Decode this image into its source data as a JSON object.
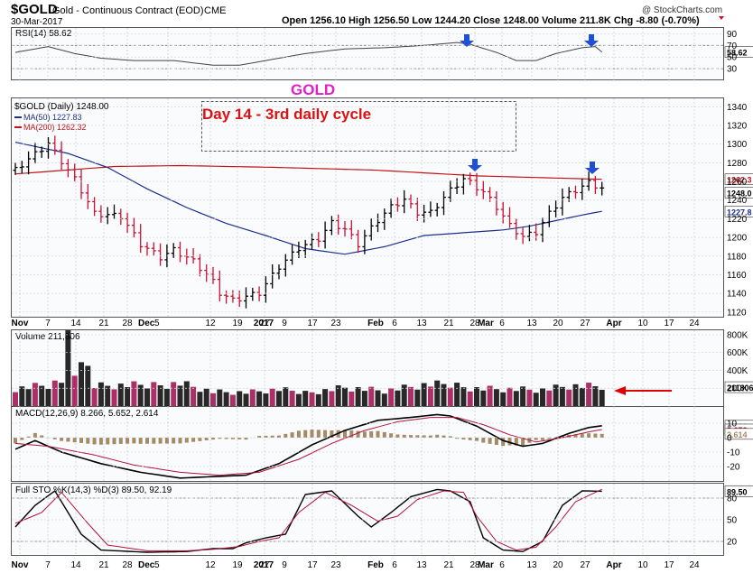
{
  "header": {
    "symbol": "$GOLD",
    "name": "Gold - Continuous Contract (EOD)",
    "exchange": "CME",
    "date": "30-Mar-2017",
    "ohlc_text": "Open 1256.10  High 1256.50  Low 1244.20  Close 1248.00  Volume 211.8K  Chg -8.80 (-0.70%)",
    "watermark": "@ StockCharts.com"
  },
  "annotations": {
    "title": "GOLD",
    "note": "Day 14 - 3rd daily cycle"
  },
  "colors": {
    "up": "#000000",
    "down": "#cc1133",
    "ma50": "#1c2f8a",
    "ma200": "#c0161a",
    "arrow": "#1f4fd6",
    "magenta": "#e020c8",
    "title_red": "#dd1111",
    "volume_up": "#111111",
    "volume_down": "#a31a55",
    "macd_line": "#000000",
    "signal_line": "#b5123a",
    "histogram": "#a48a66"
  },
  "x_axis": {
    "labels": [
      "Nov",
      "7",
      "14",
      "21",
      "28",
      "Dec",
      "5",
      "12",
      "19",
      "27",
      "2017",
      "9",
      "17",
      "23",
      "Feb",
      "6",
      "13",
      "21",
      "28",
      "Mar",
      "6",
      "13",
      "20",
      "27",
      "Apr",
      "10",
      "17",
      "24"
    ]
  },
  "chart_data": [
    {
      "type": "line",
      "title": "RSI(14) 58.62",
      "series": [
        {
          "name": "RSI(14)",
          "last": 58.62
        }
      ],
      "yticks": [
        30,
        50,
        70,
        90
      ],
      "ylim": [
        10,
        100
      ],
      "ref_lines": [
        30,
        70
      ]
    },
    {
      "type": "ohlc",
      "legend": [
        {
          "label": "$GOLD (Daily) 1248.00",
          "kind": "price"
        },
        {
          "label": "MA(50) 1227.83",
          "kind": "ma50"
        },
        {
          "label": "MA(200) 1262.32",
          "kind": "ma200"
        }
      ],
      "yticks": [
        1120,
        1140,
        1160,
        1180,
        1200,
        1220,
        1240,
        1260,
        1280,
        1300,
        1320,
        1340
      ],
      "ylim": [
        1115,
        1350
      ],
      "last_labels": {
        "ma200": "1262.3",
        "close": "1248.0",
        "ma50": "1227.8"
      },
      "close_path": [
        [
          0,
          1272
        ],
        [
          5,
          1300
        ],
        [
          9,
          1262
        ],
        [
          12,
          1225
        ],
        [
          16,
          1222
        ],
        [
          19,
          1192
        ],
        [
          22,
          1178
        ],
        [
          24,
          1186
        ],
        [
          27,
          1174
        ],
        [
          30,
          1152
        ],
        [
          31,
          1140
        ],
        [
          33,
          1132
        ],
        [
          35,
          1136
        ],
        [
          37,
          1140
        ],
        [
          40,
          1168
        ],
        [
          43,
          1188
        ],
        [
          46,
          1198
        ],
        [
          48,
          1215
        ],
        [
          50,
          1208
        ],
        [
          52,
          1192
        ],
        [
          55,
          1218
        ],
        [
          57,
          1232
        ],
        [
          59,
          1240
        ],
        [
          61,
          1226
        ],
        [
          63,
          1226
        ],
        [
          66,
          1250
        ],
        [
          68,
          1262
        ],
        [
          69,
          1258
        ],
        [
          71,
          1248
        ],
        [
          73,
          1232
        ],
        [
          75,
          1212
        ],
        [
          77,
          1200
        ],
        [
          79,
          1205
        ],
        [
          81,
          1225
        ],
        [
          83,
          1242
        ],
        [
          85,
          1250
        ],
        [
          87,
          1258
        ],
        [
          89,
          1252
        ]
      ],
      "ma50_path": [
        [
          0,
          1302
        ],
        [
          8,
          1290
        ],
        [
          14,
          1275
        ],
        [
          20,
          1252
        ],
        [
          26,
          1232
        ],
        [
          32,
          1215
        ],
        [
          38,
          1202
        ],
        [
          44,
          1188
        ],
        [
          50,
          1182
        ],
        [
          56,
          1190
        ],
        [
          62,
          1202
        ],
        [
          68,
          1205
        ],
        [
          74,
          1208
        ],
        [
          78,
          1212
        ],
        [
          82,
          1218
        ],
        [
          86,
          1224
        ],
        [
          89,
          1228
        ]
      ],
      "ma200_path": [
        [
          0,
          1268
        ],
        [
          15,
          1276
        ],
        [
          25,
          1277
        ],
        [
          40,
          1275
        ],
        [
          55,
          1272
        ],
        [
          70,
          1266
        ],
        [
          89,
          1262.3
        ]
      ]
    },
    {
      "type": "bar",
      "title": "Volume 211,806",
      "yticks": [
        "200K",
        "400K",
        "600K",
        "800K"
      ],
      "ylim": [
        0,
        850
      ],
      "last_label": "211806"
    },
    {
      "type": "line",
      "title": "MACD(12,26,9) 8.266, 5.652, 2.614",
      "series": [
        {
          "name": "MACD",
          "values_path": [
            [
              0,
              -8
            ],
            [
              3,
              -2
            ],
            [
              7,
              -10
            ],
            [
              13,
              -18
            ],
            [
              19,
              -24
            ],
            [
              25,
              -28
            ],
            [
              30,
              -27
            ],
            [
              35,
              -26
            ],
            [
              40,
              -18
            ],
            [
              45,
              -5
            ],
            [
              50,
              5
            ],
            [
              55,
              12
            ],
            [
              60,
              14
            ],
            [
              64,
              16
            ],
            [
              66,
              15
            ],
            [
              70,
              8
            ],
            [
              74,
              -2
            ],
            [
              77,
              -6
            ],
            [
              80,
              -4
            ],
            [
              84,
              3
            ],
            [
              87,
              7
            ],
            [
              89,
              8.266
            ]
          ]
        },
        {
          "name": "Signal",
          "values_path": [
            [
              0,
              -4
            ],
            [
              5,
              -6
            ],
            [
              12,
              -12
            ],
            [
              18,
              -19
            ],
            [
              25,
              -24
            ],
            [
              31,
              -26
            ],
            [
              37,
              -24
            ],
            [
              43,
              -15
            ],
            [
              48,
              -4
            ],
            [
              53,
              5
            ],
            [
              58,
              11
            ],
            [
              63,
              14
            ],
            [
              67,
              14
            ],
            [
              71,
              9
            ],
            [
              75,
              2
            ],
            [
              79,
              -3
            ],
            [
              83,
              0
            ],
            [
              87,
              4
            ],
            [
              89,
              5.652
            ]
          ]
        }
      ],
      "yticks": [
        -20,
        -10,
        0,
        10
      ],
      "ylim": [
        -30,
        20
      ],
      "last_labels": [
        "8.266",
        "5.652",
        "2.614"
      ]
    },
    {
      "type": "line",
      "title": "Full STO %K(14,3) %D(3) 89.50, 92.19",
      "series": [
        {
          "name": "%K",
          "values_path": [
            [
              0,
              40
            ],
            [
              3,
              70
            ],
            [
              6,
              90
            ],
            [
              10,
              30
            ],
            [
              13,
              8
            ],
            [
              20,
              5
            ],
            [
              26,
              6
            ],
            [
              30,
              10
            ],
            [
              33,
              10
            ],
            [
              35,
              18
            ],
            [
              38,
              25
            ],
            [
              41,
              30
            ],
            [
              44,
              85
            ],
            [
              48,
              90
            ],
            [
              52,
              55
            ],
            [
              54,
              40
            ],
            [
              57,
              60
            ],
            [
              60,
              82
            ],
            [
              64,
              92
            ],
            [
              66,
              90
            ],
            [
              69,
              75
            ],
            [
              71,
              25
            ],
            [
              74,
              8
            ],
            [
              77,
              6
            ],
            [
              80,
              20
            ],
            [
              83,
              70
            ],
            [
              86,
              90
            ],
            [
              89,
              89.5
            ]
          ]
        },
        {
          "name": "%D",
          "values_path": [
            [
              0,
              45
            ],
            [
              4,
              60
            ],
            [
              7,
              88
            ],
            [
              11,
              45
            ],
            [
              14,
              15
            ],
            [
              20,
              7
            ],
            [
              26,
              7
            ],
            [
              30,
              9
            ],
            [
              34,
              13
            ],
            [
              37,
              20
            ],
            [
              40,
              25
            ],
            [
              43,
              60
            ],
            [
              47,
              88
            ],
            [
              51,
              70
            ],
            [
              55,
              48
            ],
            [
              58,
              55
            ],
            [
              61,
              78
            ],
            [
              65,
              90
            ],
            [
              68,
              88
            ],
            [
              70,
              55
            ],
            [
              73,
              20
            ],
            [
              76,
              8
            ],
            [
              79,
              12
            ],
            [
              82,
              40
            ],
            [
              85,
              75
            ],
            [
              89,
              92.19
            ]
          ]
        }
      ],
      "yticks": [
        20,
        50,
        80
      ],
      "ylim": [
        0,
        100
      ],
      "last_label": "89.50"
    }
  ]
}
